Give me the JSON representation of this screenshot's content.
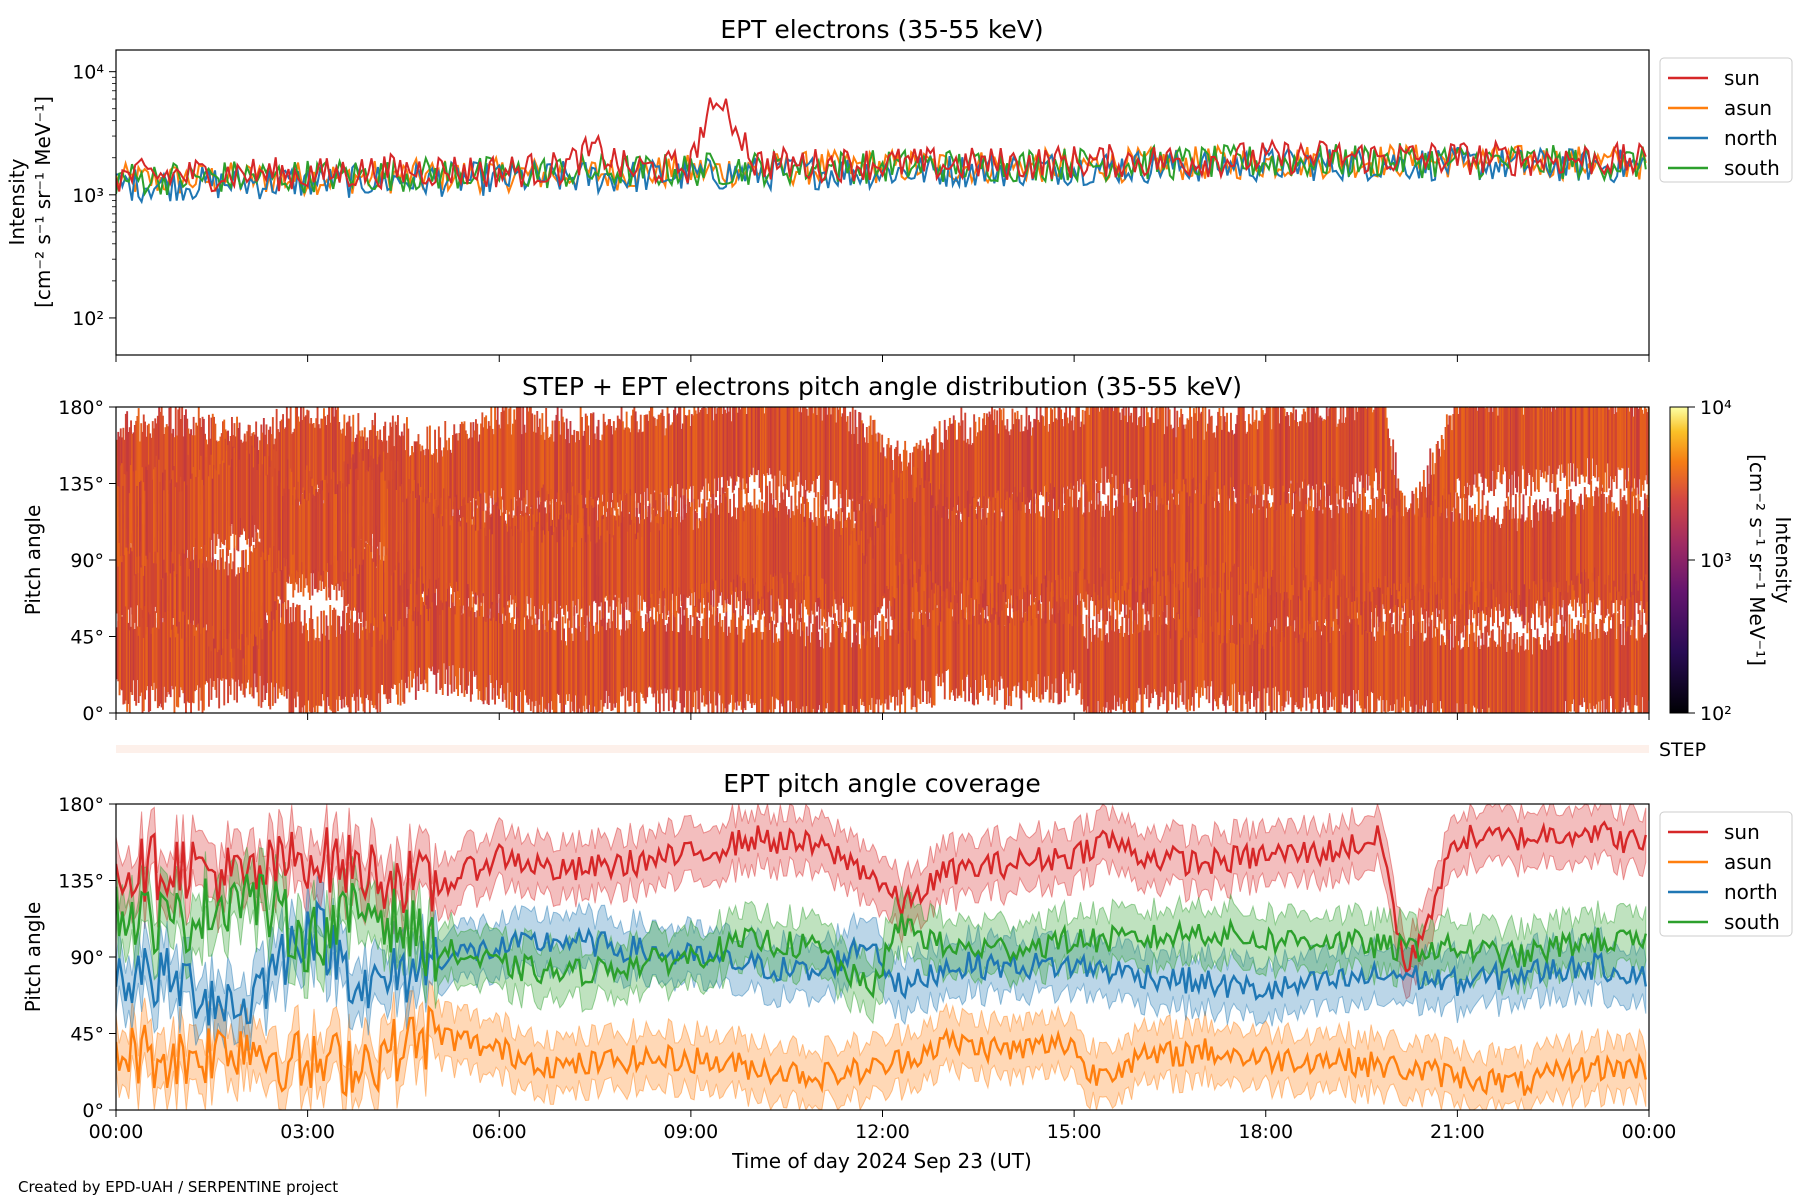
{
  "colors": {
    "sun": "#d62728",
    "asun": "#ff7f0e",
    "north": "#1f77b4",
    "south": "#2ca02c"
  },
  "chart_data": [
    {
      "type": "line",
      "title": "EPT electrons (35-55 keV)",
      "ylabel_lines": [
        "Intensity",
        "[cm⁻² s⁻¹ sr⁻¹ MeV⁻¹]"
      ],
      "yscale": "log",
      "ylim": [
        50,
        15000
      ],
      "ytick_labels": [
        "10²",
        "10³",
        "10⁴"
      ],
      "xlim_hours": [
        0,
        24
      ],
      "legend_placement": "outside-right-top",
      "series": [
        {
          "name": "sun",
          "x_hours": [
            0,
            1,
            2,
            3,
            4,
            5,
            6,
            7,
            7.5,
            8,
            9,
            9.4,
            10,
            11,
            12,
            13,
            14,
            15,
            16,
            17,
            18,
            19,
            20,
            21,
            22,
            23,
            24
          ],
          "values": [
            1400,
            1450,
            1500,
            1450,
            1550,
            1600,
            1550,
            1650,
            2300,
            1600,
            1700,
            5500,
            1800,
            1750,
            1800,
            1750,
            1800,
            1850,
            1900,
            1900,
            2000,
            2050,
            2000,
            2000,
            1950,
            1950,
            1850
          ]
        },
        {
          "name": "asun",
          "x_hours": [
            0,
            2,
            4,
            6,
            8,
            10,
            12,
            14,
            16,
            18,
            20,
            22,
            24
          ],
          "values": [
            1300,
            1350,
            1400,
            1450,
            1500,
            1600,
            1700,
            1700,
            1750,
            1850,
            1900,
            1850,
            1800
          ]
        },
        {
          "name": "north",
          "x_hours": [
            0,
            2,
            4,
            6,
            8,
            10,
            12,
            14,
            16,
            18,
            20,
            22,
            24
          ],
          "values": [
            1200,
            1250,
            1300,
            1350,
            1400,
            1500,
            1550,
            1600,
            1700,
            1750,
            1800,
            1750,
            1700
          ]
        },
        {
          "name": "south",
          "x_hours": [
            0,
            2,
            4,
            6,
            8,
            10,
            12,
            14,
            16,
            18,
            20,
            22,
            24
          ],
          "values": [
            1350,
            1400,
            1450,
            1500,
            1550,
            1650,
            1700,
            1750,
            1800,
            1850,
            1900,
            1850,
            1800
          ]
        }
      ]
    },
    {
      "type": "heatmap",
      "title": "STEP + EPT electrons pitch angle distribution (35-55 keV)",
      "ylabel": "Pitch angle",
      "ylim": [
        0,
        180
      ],
      "ytick_labels": [
        "0°",
        "45°",
        "90°",
        "135°",
        "180°"
      ],
      "xlim_hours": [
        0,
        24
      ],
      "colorbar": {
        "scale": "log",
        "range": [
          100,
          10000
        ],
        "tick_labels": [
          "10²",
          "10³",
          "10⁴"
        ],
        "label_lines": [
          "Intensity",
          "[cm⁻² s⁻¹ sr⁻¹ MeV⁻¹]"
        ]
      },
      "sub_label": "STEP",
      "coverage_source": "EPT pitch angle coverage"
    },
    {
      "type": "area",
      "title": "EPT pitch angle coverage",
      "ylabel": "Pitch angle",
      "xlabel": "Time of day 2024 Sep 23 (UT)",
      "ylim": [
        0,
        180
      ],
      "ytick_labels": [
        "0°",
        "45°",
        "90°",
        "135°",
        "180°"
      ],
      "xlim_hours": [
        0,
        24
      ],
      "xtick_labels": [
        "00:00",
        "03:00",
        "06:00",
        "09:00",
        "12:00",
        "15:00",
        "18:00",
        "21:00",
        "00:00"
      ],
      "legend_placement": "outside-right-top",
      "band_half_width_deg": 16,
      "series": [
        {
          "name": "sun",
          "x_hours": [
            0,
            1,
            2,
            3,
            4,
            5,
            6,
            7,
            8,
            9,
            10,
            11,
            11.8,
            12.3,
            13,
            14,
            15,
            15.5,
            16,
            17,
            18,
            19,
            19.8,
            20.2,
            21,
            22,
            23,
            24
          ],
          "values": [
            140,
            145,
            135,
            150,
            140,
            130,
            150,
            140,
            145,
            150,
            160,
            155,
            140,
            120,
            140,
            145,
            150,
            160,
            150,
            145,
            150,
            152,
            160,
            80,
            160,
            160,
            165,
            155
          ]
        },
        {
          "name": "asun",
          "x_hours": [
            0,
            1,
            2,
            3,
            4,
            5,
            6,
            7,
            8,
            9,
            10,
            11,
            12,
            13,
            14,
            15,
            15.2,
            16,
            17,
            18,
            19,
            20,
            21,
            22,
            23,
            24
          ],
          "values": [
            35,
            30,
            40,
            25,
            30,
            45,
            35,
            25,
            30,
            30,
            25,
            20,
            25,
            40,
            35,
            40,
            20,
            30,
            35,
            30,
            30,
            25,
            20,
            15,
            25,
            25
          ]
        },
        {
          "name": "north",
          "x_hours": [
            0,
            1,
            2,
            3,
            4,
            5,
            6,
            7,
            8,
            9,
            10,
            11,
            11.8,
            12.3,
            13,
            14,
            15,
            16,
            17,
            18,
            19,
            20,
            21,
            22,
            23,
            24
          ],
          "values": [
            80,
            75,
            60,
            110,
            70,
            90,
            95,
            100,
            95,
            90,
            85,
            80,
            100,
            70,
            85,
            85,
            85,
            80,
            75,
            70,
            75,
            80,
            75,
            80,
            85,
            80
          ]
        },
        {
          "name": "south",
          "x_hours": [
            0,
            1,
            2,
            3,
            4,
            5,
            6,
            7,
            8,
            9,
            10,
            11,
            11.8,
            12.3,
            13,
            14,
            15,
            16,
            17,
            18,
            19,
            20,
            21,
            22,
            23,
            24
          ],
          "values": [
            115,
            110,
            130,
            100,
            120,
            95,
            85,
            80,
            85,
            90,
            100,
            95,
            70,
            110,
            95,
            95,
            100,
            100,
            105,
            100,
            100,
            95,
            95,
            90,
            100,
            98
          ]
        }
      ]
    }
  ],
  "footer": {
    "credit": "Created by EPD-UAH / SERPENTINE project"
  }
}
